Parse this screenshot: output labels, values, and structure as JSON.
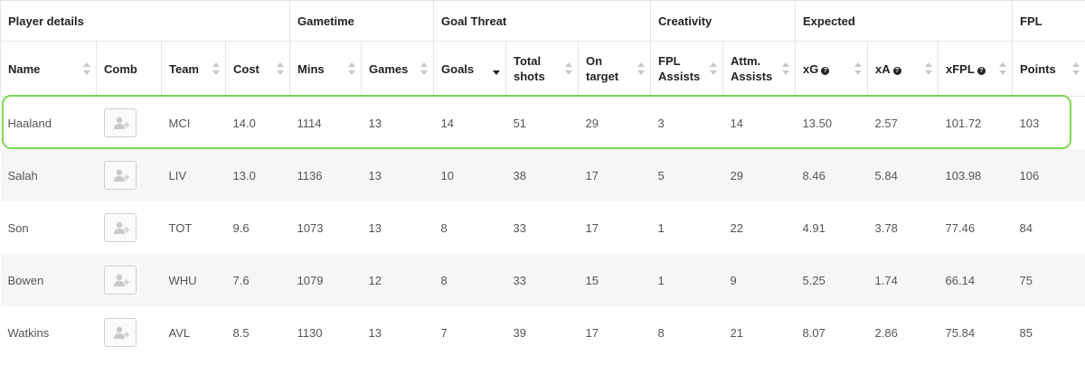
{
  "groups": [
    {
      "label": "Player details",
      "span": 4
    },
    {
      "label": "Gametime",
      "span": 2
    },
    {
      "label": "Goal Threat",
      "span": 3
    },
    {
      "label": "Creativity",
      "span": 2
    },
    {
      "label": "Expected",
      "span": 3
    },
    {
      "label": "FPL",
      "span": 1
    }
  ],
  "columns": [
    {
      "key": "name",
      "label": "Name",
      "sortable": true
    },
    {
      "key": "comb",
      "label": "Comb",
      "sortable": false
    },
    {
      "key": "team",
      "label": "Team",
      "sortable": true
    },
    {
      "key": "cost",
      "label": "Cost",
      "sortable": true
    },
    {
      "key": "mins",
      "label": "Mins",
      "sortable": true
    },
    {
      "key": "games",
      "label": "Games",
      "sortable": true
    },
    {
      "key": "goals",
      "label": "Goals",
      "sortable": true,
      "sort_active": "desc"
    },
    {
      "key": "total_shots",
      "label": "Total shots",
      "sortable": true
    },
    {
      "key": "on_target",
      "label": "On target",
      "sortable": true
    },
    {
      "key": "fpl_assists",
      "label": "FPL Assists",
      "sortable": true
    },
    {
      "key": "attm_assists",
      "label": "Attm. Assists",
      "sortable": true
    },
    {
      "key": "xg",
      "label": "xG",
      "sortable": true,
      "help": true
    },
    {
      "key": "xa",
      "label": "xA",
      "sortable": true,
      "help": true
    },
    {
      "key": "xfpl",
      "label": "xFPL",
      "sortable": true,
      "help": true
    },
    {
      "key": "points",
      "label": "Points",
      "sortable": true
    }
  ],
  "rows": [
    {
      "name": "Haaland",
      "team": "MCI",
      "cost": "14.0",
      "mins": "1114",
      "games": "13",
      "goals": "14",
      "total_shots": "51",
      "on_target": "29",
      "fpl_assists": "3",
      "attm_assists": "14",
      "xg": "13.50",
      "xa": "2.57",
      "xfpl": "101.72",
      "points": "103",
      "highlighted": true
    },
    {
      "name": "Salah",
      "team": "LIV",
      "cost": "13.0",
      "mins": "1136",
      "games": "13",
      "goals": "10",
      "total_shots": "38",
      "on_target": "17",
      "fpl_assists": "5",
      "attm_assists": "29",
      "xg": "8.46",
      "xa": "5.84",
      "xfpl": "103.98",
      "points": "106"
    },
    {
      "name": "Son",
      "team": "TOT",
      "cost": "9.6",
      "mins": "1073",
      "games": "13",
      "goals": "8",
      "total_shots": "33",
      "on_target": "17",
      "fpl_assists": "1",
      "attm_assists": "22",
      "xg": "4.91",
      "xa": "3.78",
      "xfpl": "77.46",
      "points": "84"
    },
    {
      "name": "Bowen",
      "team": "WHU",
      "cost": "7.6",
      "mins": "1079",
      "games": "12",
      "goals": "8",
      "total_shots": "33",
      "on_target": "15",
      "fpl_assists": "1",
      "attm_assists": "9",
      "xg": "5.25",
      "xa": "1.74",
      "xfpl": "66.14",
      "points": "75"
    },
    {
      "name": "Watkins",
      "team": "AVL",
      "cost": "8.5",
      "mins": "1130",
      "games": "13",
      "goals": "7",
      "total_shots": "39",
      "on_target": "17",
      "fpl_assists": "8",
      "attm_assists": "21",
      "xg": "8.07",
      "xa": "2.86",
      "xfpl": "75.84",
      "points": "85"
    }
  ],
  "colors": {
    "highlight": "#7ed957",
    "row_shade": "#f6f6f6",
    "border": "#e4e4e4"
  },
  "icons": {
    "add_to_comparison": "user-plus-icon",
    "sort": "sort-arrows-icon",
    "help": "question-icon"
  }
}
